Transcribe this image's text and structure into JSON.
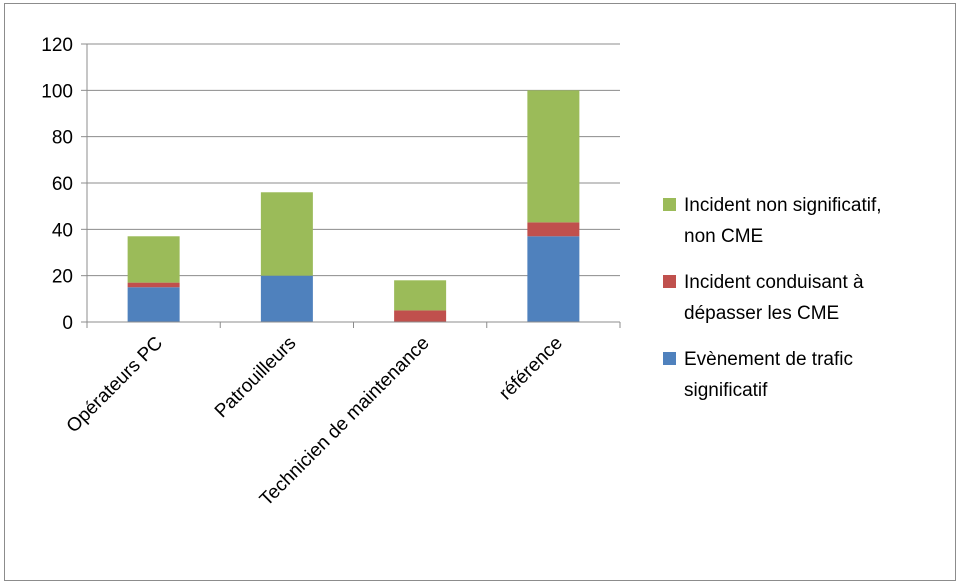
{
  "chart_data": {
    "type": "bar",
    "stacked": true,
    "categories": [
      "Opérateurs PC",
      "Patrouilleurs",
      "Technicien de maintenance",
      "référence"
    ],
    "series": [
      {
        "name": "Evènement de trafic significatif",
        "legend_lines": [
          "Evènement de trafic",
          "significatif"
        ],
        "color": "#4f81bd",
        "values": [
          15,
          20,
          0,
          37
        ]
      },
      {
        "name": "Incident conduisant à dépasser les CME",
        "legend_lines": [
          "Incident conduisant à",
          "dépasser les CME"
        ],
        "color": "#c0504d",
        "values": [
          2,
          0,
          5,
          6
        ]
      },
      {
        "name": "Incident non significatif, non CME",
        "legend_lines": [
          "Incident non significatif,",
          "non CME"
        ],
        "color": "#9bbb59",
        "values": [
          20,
          36,
          13,
          57
        ]
      }
    ],
    "ylim": [
      0,
      120
    ],
    "yticks": [
      0,
      20,
      40,
      60,
      80,
      100,
      120
    ],
    "grid": true,
    "legend_position": "right",
    "title": "",
    "xlabel": "",
    "ylabel": ""
  }
}
